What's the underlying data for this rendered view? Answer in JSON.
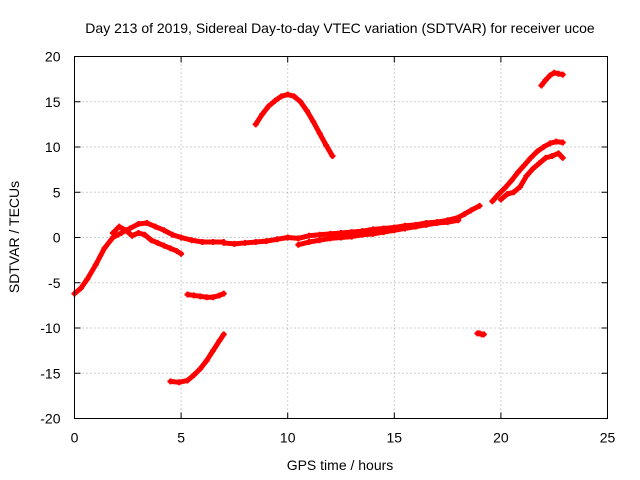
{
  "chart_data": {
    "type": "scatter",
    "title": "Day 213 of 2019, Sidereal Day-to-day VTEC variation (SDTVAR) for receiver ucoe",
    "xlabel": "GPS time / hours",
    "ylabel": "SDTVAR / TECUs",
    "xlim": [
      0,
      25
    ],
    "ylim": [
      -20,
      20
    ],
    "xticks": [
      0,
      5,
      10,
      15,
      20,
      25
    ],
    "yticks": [
      -20,
      -15,
      -10,
      -5,
      0,
      5,
      10,
      15,
      20
    ],
    "grid": true,
    "series_color": "#ff0000",
    "series": [
      {
        "name": "main-trace-a",
        "x": [
          0.0,
          0.3,
          0.6,
          1.0,
          1.4,
          1.8,
          2.2,
          2.6,
          3.0,
          3.4,
          3.8,
          4.2,
          4.6,
          5.0,
          5.5,
          6.0,
          6.5,
          7.0
        ],
        "y": [
          -6.2,
          -5.6,
          -4.6,
          -3.0,
          -1.2,
          0.0,
          0.5,
          1.0,
          1.5,
          1.6,
          1.2,
          0.8,
          0.3,
          0.0,
          -0.3,
          -0.5,
          -0.5,
          -0.5
        ]
      },
      {
        "name": "main-trace-b",
        "x": [
          1.8,
          2.1,
          2.4,
          2.7,
          3.0,
          3.3,
          3.6,
          3.9,
          4.2,
          4.5,
          4.8,
          5.0
        ],
        "y": [
          0.5,
          1.2,
          0.8,
          0.2,
          0.5,
          0.3,
          -0.3,
          -0.6,
          -0.9,
          -1.2,
          -1.5,
          -1.8
        ]
      },
      {
        "name": "main-trace-c",
        "x": [
          7.0,
          7.5,
          8.0,
          8.5,
          9.0,
          9.5,
          10.0,
          10.5,
          11.0,
          11.5,
          12.0,
          12.5,
          13.0,
          13.5,
          14.0,
          14.5,
          15.0,
          15.5,
          16.0,
          16.5,
          17.0,
          17.5,
          18.0,
          18.3,
          18.6,
          19.0
        ],
        "y": [
          -0.6,
          -0.7,
          -0.6,
          -0.5,
          -0.4,
          -0.2,
          0.0,
          -0.1,
          0.2,
          0.3,
          0.4,
          0.5,
          0.6,
          0.7,
          0.9,
          1.0,
          1.1,
          1.3,
          1.4,
          1.6,
          1.7,
          1.9,
          2.2,
          2.6,
          3.0,
          3.5
        ]
      },
      {
        "name": "main-trace-d",
        "x": [
          10.5,
          11.0,
          11.5,
          12.0,
          12.5,
          13.0,
          13.5,
          14.0,
          14.5,
          15.0,
          15.5,
          16.0,
          16.5,
          17.0,
          17.5,
          18.0
        ],
        "y": [
          -0.8,
          -0.5,
          -0.3,
          -0.1,
          0.0,
          0.1,
          0.3,
          0.4,
          0.6,
          0.8,
          1.0,
          1.2,
          1.4,
          1.6,
          1.7,
          1.9
        ]
      },
      {
        "name": "upper-branch",
        "x": [
          19.6,
          19.9,
          20.2,
          20.5,
          20.8,
          21.1,
          21.4,
          21.7,
          22.0,
          22.3,
          22.6,
          22.9
        ],
        "y": [
          4.0,
          4.8,
          5.5,
          6.3,
          7.2,
          8.0,
          8.8,
          9.5,
          10.0,
          10.4,
          10.6,
          10.5
        ]
      },
      {
        "name": "lower-branch",
        "x": [
          20.0,
          20.3,
          20.6,
          20.9,
          21.2,
          21.5,
          21.8,
          22.1,
          22.4,
          22.7,
          22.9
        ],
        "y": [
          4.2,
          4.8,
          5.0,
          5.6,
          6.8,
          7.6,
          8.2,
          8.8,
          9.0,
          9.3,
          8.8
        ]
      },
      {
        "name": "arc-upper",
        "x": [
          8.5,
          8.8,
          9.1,
          9.4,
          9.7,
          10.0,
          10.3,
          10.6,
          10.9,
          11.2,
          11.5,
          11.8,
          12.1
        ],
        "y": [
          12.5,
          13.6,
          14.5,
          15.1,
          15.6,
          15.8,
          15.6,
          15.0,
          14.0,
          12.8,
          11.5,
          10.2,
          9.0
        ]
      },
      {
        "name": "arc-lower",
        "x": [
          4.5,
          4.9,
          5.3,
          5.6,
          5.9,
          6.2,
          6.5,
          6.8,
          7.0
        ],
        "y": [
          -15.9,
          -16.0,
          -15.8,
          -15.2,
          -14.5,
          -13.6,
          -12.5,
          -11.4,
          -10.7
        ]
      },
      {
        "name": "short-segment-1",
        "x": [
          5.3,
          5.6,
          5.9,
          6.2,
          6.5,
          6.8,
          7.0
        ],
        "y": [
          -6.3,
          -6.4,
          -6.5,
          -6.6,
          -6.6,
          -6.4,
          -6.2
        ]
      },
      {
        "name": "short-segment-2",
        "x": [
          18.9,
          19.0,
          19.1,
          19.2
        ],
        "y": [
          -10.6,
          -10.6,
          -10.7,
          -10.7
        ]
      },
      {
        "name": "short-segment-3",
        "x": [
          21.9,
          22.1,
          22.3,
          22.5,
          22.7,
          22.9
        ],
        "y": [
          16.8,
          17.4,
          17.9,
          18.2,
          18.1,
          18.0
        ]
      }
    ]
  }
}
